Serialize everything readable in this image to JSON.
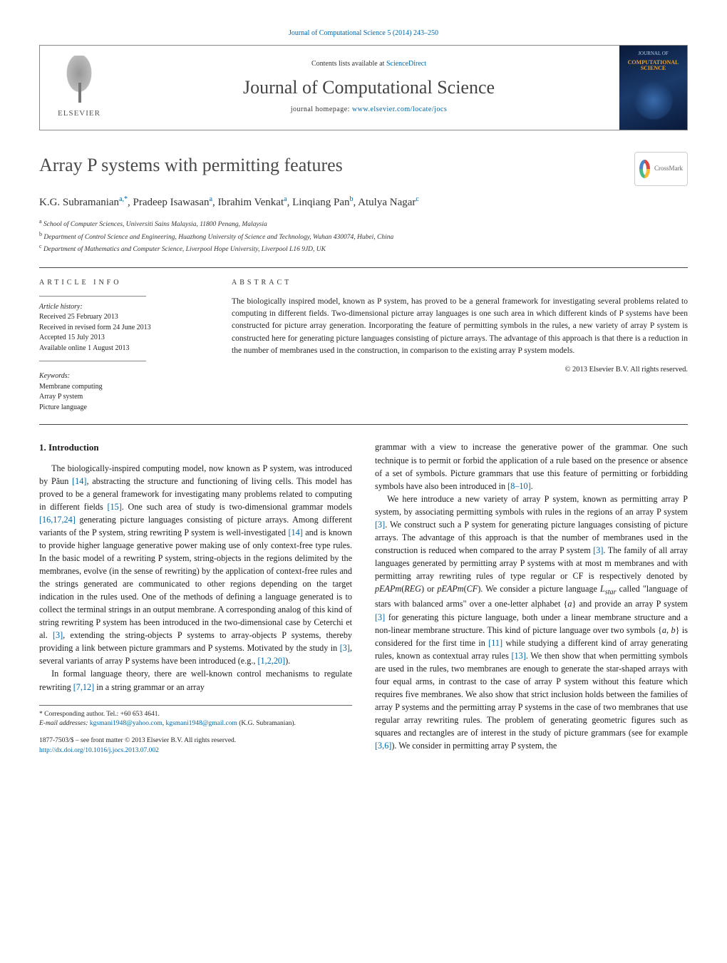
{
  "header": {
    "journal_ref": "Journal of Computational Science 5 (2014) 243–250",
    "contents_prefix": "Contents lists available at ",
    "contents_link": "ScienceDirect",
    "journal_name": "Journal of Computational Science",
    "homepage_prefix": "journal homepage: ",
    "homepage_link": "www.elsevier.com/locate/jocs",
    "publisher": "ELSEVIER",
    "cover_title": "COMPUTATIONAL SCIENCE",
    "cover_supertitle": "JOURNAL OF"
  },
  "crossmark_label": "CrossMark",
  "title": "Array P systems with permitting features",
  "authors_html": "K.G. Subramanian<sup>a,*</sup>, Pradeep Isawasan<sup>a</sup>, Ibrahim Venkat<sup>a</sup>, Linqiang Pan<sup>b</sup>, Atulya Nagar<sup>c</sup>",
  "affiliations": [
    "a School of Computer Sciences, Universiti Sains Malaysia, 11800 Penang, Malaysia",
    "b Department of Control Science and Engineering, Huazhong University of Science and Technology, Wuhan 430074, Hubei, China",
    "c Department of Mathematics and Computer Science, Liverpool Hope University, Liverpool L16 9JD, UK"
  ],
  "article_info": {
    "heading": "ARTICLE INFO",
    "history_label": "Article history:",
    "history": [
      "Received 25 February 2013",
      "Received in revised form 24 June 2013",
      "Accepted 15 July 2013",
      "Available online 1 August 2013"
    ],
    "keywords_label": "Keywords:",
    "keywords": [
      "Membrane computing",
      "Array P system",
      "Picture language"
    ]
  },
  "abstract": {
    "heading": "ABSTRACT",
    "text": "The biologically inspired model, known as P system, has proved to be a general framework for investigating several problems related to computing in different fields. Two-dimensional picture array languages is one such area in which different kinds of P systems have been constructed for picture array generation. Incorporating the feature of permitting symbols in the rules, a new variety of array P system is constructed here for generating picture languages consisting of picture arrays. The advantage of this approach is that there is a reduction in the number of membranes used in the construction, in comparison to the existing array P system models.",
    "copyright": "© 2013 Elsevier B.V. All rights reserved."
  },
  "intro_heading": "1. Introduction",
  "col1_p1": "The biologically-inspired computing model, now known as P system, was introduced by Păun [14], abstracting the structure and functioning of living cells. This model has proved to be a general framework for investigating many problems related to computing in different fields [15]. One such area of study is two-dimensional grammar models [16,17,24] generating picture languages consisting of picture arrays. Among different variants of the P system, string rewriting P system is well-investigated [14] and is known to provide higher language generative power making use of only context-free type rules. In the basic model of a rewriting P system, string-objects in the regions delimited by the membranes, evolve (in the sense of rewriting) by the application of context-free rules and the strings generated are communicated to other regions depending on the target indication in the rules used. One of the methods of defining a language generated is to collect the terminal strings in an output membrane. A corresponding analog of this kind of string rewriting P system has been introduced in the two-dimensional case by Ceterchi et al. [3], extending the string-objects P systems to array-objects P systems, thereby providing a link between picture grammars and P systems. Motivated by the study in [3], several variants of array P systems have been introduced (e.g., [1,2,20]).",
  "col1_p2": "In formal language theory, there are well-known control mechanisms to regulate rewriting [7,12] in a string grammar or an array",
  "col2_p1": "grammar with a view to increase the generative power of the grammar. One such technique is to permit or forbid the application of a rule based on the presence or absence of a set of symbols. Picture grammars that use this feature of permitting or forbidding symbols have also been introduced in [8–10].",
  "col2_p2": "We here introduce a new variety of array P system, known as permitting array P system, by associating permitting symbols with rules in the regions of an array P system [3]. We construct such a P system for generating picture languages consisting of picture arrays. The advantage of this approach is that the number of membranes used in the construction is reduced when compared to the array P system [3]. The family of all array languages generated by permitting array P systems with at most m membranes and with permitting array rewriting rules of type regular or CF is respectively denoted by pEAPm(REG) or pEAPm(CF). We consider a picture language Lstar called \"language of stars with balanced arms\" over a one-letter alphabet {a} and provide an array P system [3] for generating this picture language, both under a linear membrane structure and a non-linear membrane structure. This kind of picture language over two symbols {a, b} is considered for the first time in [11] while studying a different kind of array generating rules, known as contextual array rules [13]. We then show that when permitting symbols are used in the rules, two membranes are enough to generate the star-shaped arrays with four equal arms, in contrast to the case of array P system without this feature which requires five membranes. We also show that strict inclusion holds between the families of array P systems and the permitting array P systems in the case of two membranes that use regular array rewriting rules. The problem of generating geometric figures such as squares and rectangles are of interest in the study of picture grammars (see for example [3,6]). We consider in permitting array P system, the",
  "footnotes": {
    "corr": "* Corresponding author. Tel.: +60 653 4641.",
    "emails_lbl": "E-mail addresses: ",
    "email1": "kgsmani1948@yahoo.com",
    "email2": "kgsmani1948@gmail.com",
    "email_owner": "(K.G. Subramanian)."
  },
  "bottom": {
    "issn_line": "1877-7503/$ – see front matter © 2013 Elsevier B.V. All rights reserved.",
    "doi": "http://dx.doi.org/10.1016/j.jocs.2013.07.002"
  },
  "colors": {
    "link": "#0066aa",
    "text": "#1a1a1a",
    "rule": "#444444"
  }
}
